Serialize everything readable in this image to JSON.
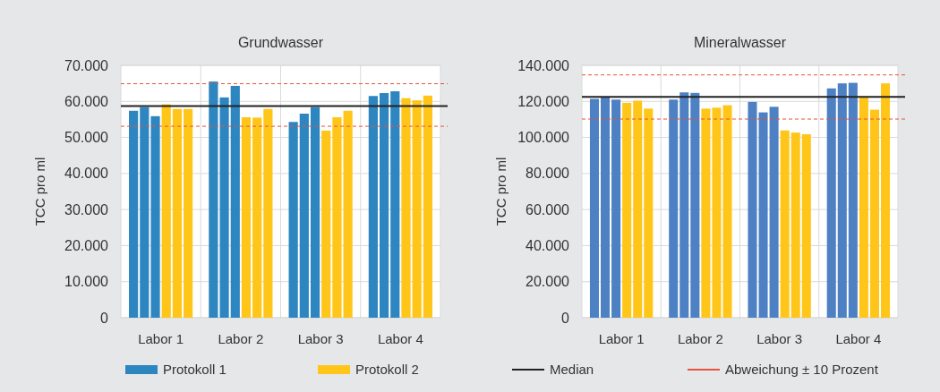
{
  "chart_data": [
    {
      "type": "bar",
      "title": "Grundwasser",
      "ylabel": "TCC pro ml",
      "categories": [
        "Labor 1",
        "Labor 2",
        "Labor 3",
        "Labor 4"
      ],
      "series": [
        {
          "name": "Protokoll 1",
          "color": "#2e86c1",
          "values": [
            57400,
            65500,
            54300,
            61500
          ]
        },
        {
          "color": "#2e86c1",
          "values": [
            58400,
            61100,
            56600,
            62300
          ]
        },
        {
          "color": "#2e86c1",
          "values": [
            55900,
            64300,
            58400,
            62800
          ]
        },
        {
          "name": "Protokoll 2",
          "color": "#ffc619",
          "values": [
            59200,
            55600,
            51900,
            60900
          ]
        },
        {
          "color": "#ffc619",
          "values": [
            57900,
            55500,
            55600,
            60300
          ]
        },
        {
          "color": "#ffc619",
          "values": [
            57900,
            57900,
            57400,
            61600
          ]
        }
      ],
      "ylim": [
        0,
        70000
      ],
      "yticks": [
        {
          "value": 0,
          "label": "0"
        },
        {
          "value": 10000,
          "label": "10.000"
        },
        {
          "value": 20000,
          "label": "20.000"
        },
        {
          "value": 30000,
          "label": "30.000"
        },
        {
          "value": 40000,
          "label": "40.000"
        },
        {
          "value": 50000,
          "label": "50.000"
        },
        {
          "value": 60000,
          "label": "60.000"
        },
        {
          "value": 70000,
          "label": "70.000"
        }
      ],
      "ref_lines": [
        {
          "axis": "y",
          "value": 58700,
          "label": "Median",
          "color": "#222222",
          "line_style": "solid"
        },
        {
          "axis": "y",
          "value": 64900,
          "label": "Abweichung ± 10 Prozent",
          "color": "#e5533d",
          "line_style": "dashed"
        },
        {
          "axis": "y",
          "value": 53100,
          "color": "#e5533d",
          "line_style": "dashed"
        }
      ],
      "grid": true,
      "legend": "bottom"
    },
    {
      "type": "bar",
      "title": "Mineralwasser",
      "ylabel": "TCC pro ml",
      "categories": [
        "Labor 1",
        "Labor 2",
        "Labor 3",
        "Labor 4"
      ],
      "series": [
        {
          "color": "#4e81c4",
          "values": [
            121400,
            121000,
            119700,
            127200
          ]
        },
        {
          "color": "#4e81c4",
          "values": [
            122500,
            125000,
            113900,
            130000
          ]
        },
        {
          "color": "#4e81c4",
          "values": [
            121000,
            124700,
            117000,
            130300
          ]
        },
        {
          "color": "#ffc619",
          "values": [
            119200,
            116000,
            103900,
            122200
          ]
        },
        {
          "color": "#ffc619",
          "values": [
            120400,
            116500,
            102700,
            115400
          ]
        },
        {
          "color": "#ffc619",
          "values": [
            116000,
            117900,
            101800,
            130000
          ]
        }
      ],
      "ylim": [
        0,
        140000
      ],
      "yticks": [
        {
          "value": 0,
          "label": "0"
        },
        {
          "value": 20000,
          "label": "20.000"
        },
        {
          "value": 40000,
          "label": "40.000"
        },
        {
          "value": 60000,
          "label": "60.000"
        },
        {
          "value": 80000,
          "label": "80.000"
        },
        {
          "value": 100000,
          "label": "100.000"
        },
        {
          "value": 120000,
          "label": "120.000"
        },
        {
          "value": 140000,
          "label": "140.000"
        }
      ],
      "ref_lines": [
        {
          "axis": "y",
          "value": 122500,
          "color": "#222222",
          "line_style": "solid"
        },
        {
          "axis": "y",
          "value": 134700,
          "color": "#e5533d",
          "line_style": "dashed"
        },
        {
          "axis": "y",
          "value": 110200,
          "color": "#e5533d",
          "line_style": "dashed"
        }
      ],
      "grid": true
    }
  ]
}
